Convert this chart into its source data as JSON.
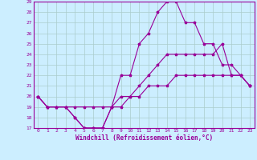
{
  "xlabel": "Windchill (Refroidissement éolien,°C)",
  "bg_color": "#cceeff",
  "line_color": "#990099",
  "grid_color": "#aacccc",
  "xlim": [
    -0.5,
    23.5
  ],
  "ylim": [
    17,
    29
  ],
  "xticks": [
    0,
    1,
    2,
    3,
    4,
    5,
    6,
    7,
    8,
    9,
    10,
    11,
    12,
    13,
    14,
    15,
    16,
    17,
    18,
    19,
    20,
    21,
    22,
    23
  ],
  "yticks": [
    17,
    18,
    19,
    20,
    21,
    22,
    23,
    24,
    25,
    26,
    27,
    28,
    29
  ],
  "line1_x": [
    0,
    1,
    2,
    3,
    4,
    5,
    6,
    7,
    8,
    9,
    10,
    11,
    12,
    13,
    14,
    15,
    16,
    17,
    18,
    19,
    20,
    21,
    22,
    23
  ],
  "line1_y": [
    20,
    19,
    19,
    19,
    18,
    17,
    17,
    17,
    19,
    22,
    22,
    25,
    26,
    28,
    29,
    29,
    27,
    27,
    25,
    25,
    23,
    23,
    22,
    21
  ],
  "line2_x": [
    0,
    1,
    2,
    3,
    4,
    5,
    6,
    7,
    8,
    9,
    10,
    11,
    12,
    13,
    14,
    15,
    16,
    17,
    18,
    19,
    20,
    21,
    22,
    23
  ],
  "line2_y": [
    20,
    19,
    19,
    19,
    18,
    17,
    17,
    17,
    19,
    19,
    20,
    21,
    22,
    23,
    24,
    24,
    24,
    24,
    24,
    24,
    25,
    22,
    22,
    21
  ],
  "line3_x": [
    0,
    1,
    2,
    3,
    4,
    5,
    6,
    7,
    8,
    9,
    10,
    11,
    12,
    13,
    14,
    15,
    16,
    17,
    18,
    19,
    20,
    21,
    22,
    23
  ],
  "line3_y": [
    20,
    19,
    19,
    19,
    19,
    19,
    19,
    19,
    19,
    20,
    20,
    20,
    21,
    21,
    21,
    22,
    22,
    22,
    22,
    22,
    22,
    22,
    22,
    21
  ]
}
